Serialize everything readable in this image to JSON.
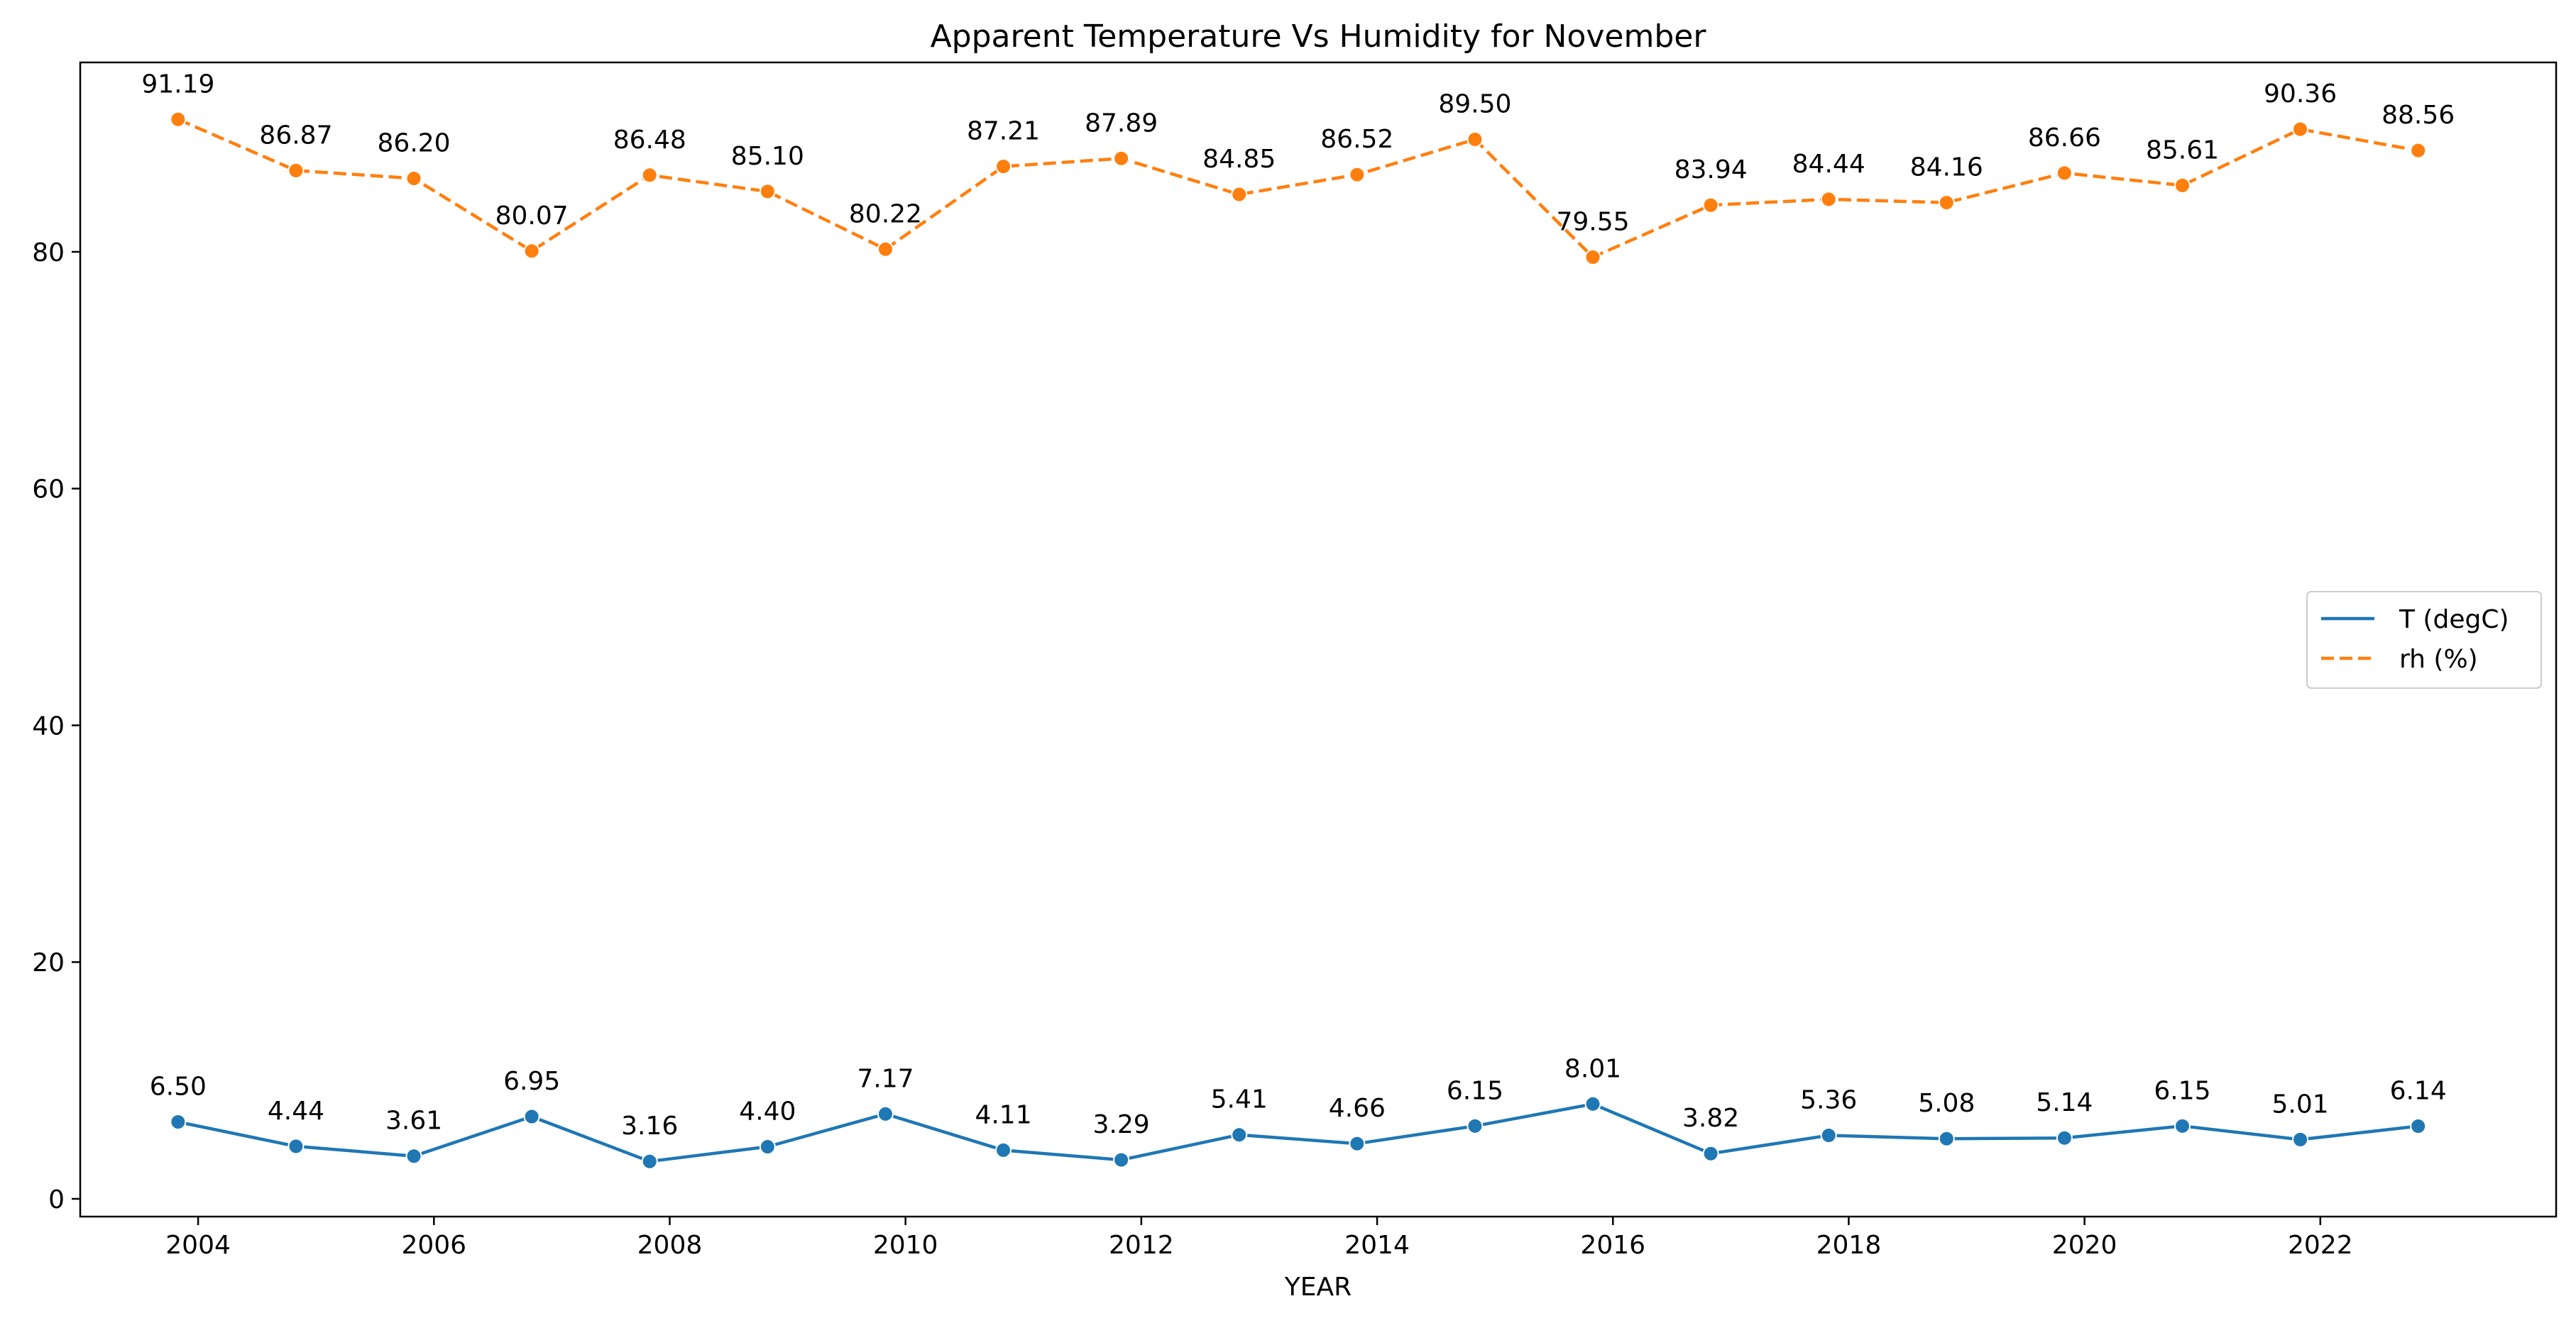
{
  "chart_data": {
    "type": "line",
    "title": "Apparent Temperature Vs Humidity for November",
    "xlabel": "YEAR",
    "ylabel": "",
    "xlim": [
      2003.0,
      2024.0
    ],
    "ylim": [
      -1.5,
      96.0
    ],
    "xticks": [
      2004,
      2006,
      2008,
      2010,
      2012,
      2014,
      2016,
      2018,
      2020,
      2022
    ],
    "yticks": [
      0,
      20,
      40,
      60,
      80
    ],
    "grid": false,
    "legend_position": "center-right",
    "series": [
      {
        "name": "T (degC)",
        "color": "#1f77b4",
        "linestyle": "solid",
        "x": [
          2003.83,
          2004.83,
          2005.83,
          2006.83,
          2007.83,
          2008.83,
          2009.83,
          2010.83,
          2011.83,
          2012.83,
          2013.83,
          2014.83,
          2015.83,
          2016.83,
          2017.83,
          2018.83,
          2019.83,
          2020.83,
          2021.83,
          2022.83
        ],
        "values": [
          6.5,
          4.44,
          3.61,
          6.95,
          3.16,
          4.4,
          7.17,
          4.11,
          3.29,
          5.41,
          4.66,
          6.15,
          8.01,
          3.82,
          5.36,
          5.08,
          5.14,
          6.15,
          5.01,
          6.14
        ],
        "labels": [
          "6.50",
          "4.44",
          "3.61",
          "6.95",
          "3.16",
          "4.40",
          "7.17",
          "4.11",
          "3.29",
          "5.41",
          "4.66",
          "6.15",
          "8.01",
          "3.82",
          "5.36",
          "5.08",
          "5.14",
          "6.15",
          "5.01",
          "6.14"
        ]
      },
      {
        "name": "rh (%)",
        "color": "#ff7f0e",
        "linestyle": "dashed",
        "x": [
          2003.83,
          2004.83,
          2005.83,
          2006.83,
          2007.83,
          2008.83,
          2009.83,
          2010.83,
          2011.83,
          2012.83,
          2013.83,
          2014.83,
          2015.83,
          2016.83,
          2017.83,
          2018.83,
          2019.83,
          2020.83,
          2021.83,
          2022.83
        ],
        "values": [
          91.19,
          86.87,
          86.2,
          80.07,
          86.48,
          85.1,
          80.22,
          87.21,
          87.89,
          84.85,
          86.52,
          89.5,
          79.55,
          83.94,
          84.44,
          84.16,
          86.66,
          85.61,
          90.36,
          88.56
        ],
        "labels": [
          "91.19",
          "86.87",
          "86.20",
          "80.07",
          "86.48",
          "85.10",
          "80.22",
          "87.21",
          "87.89",
          "84.85",
          "86.52",
          "89.50",
          "79.55",
          "83.94",
          "84.44",
          "84.16",
          "86.66",
          "85.61",
          "90.36",
          "88.56"
        ]
      }
    ]
  }
}
